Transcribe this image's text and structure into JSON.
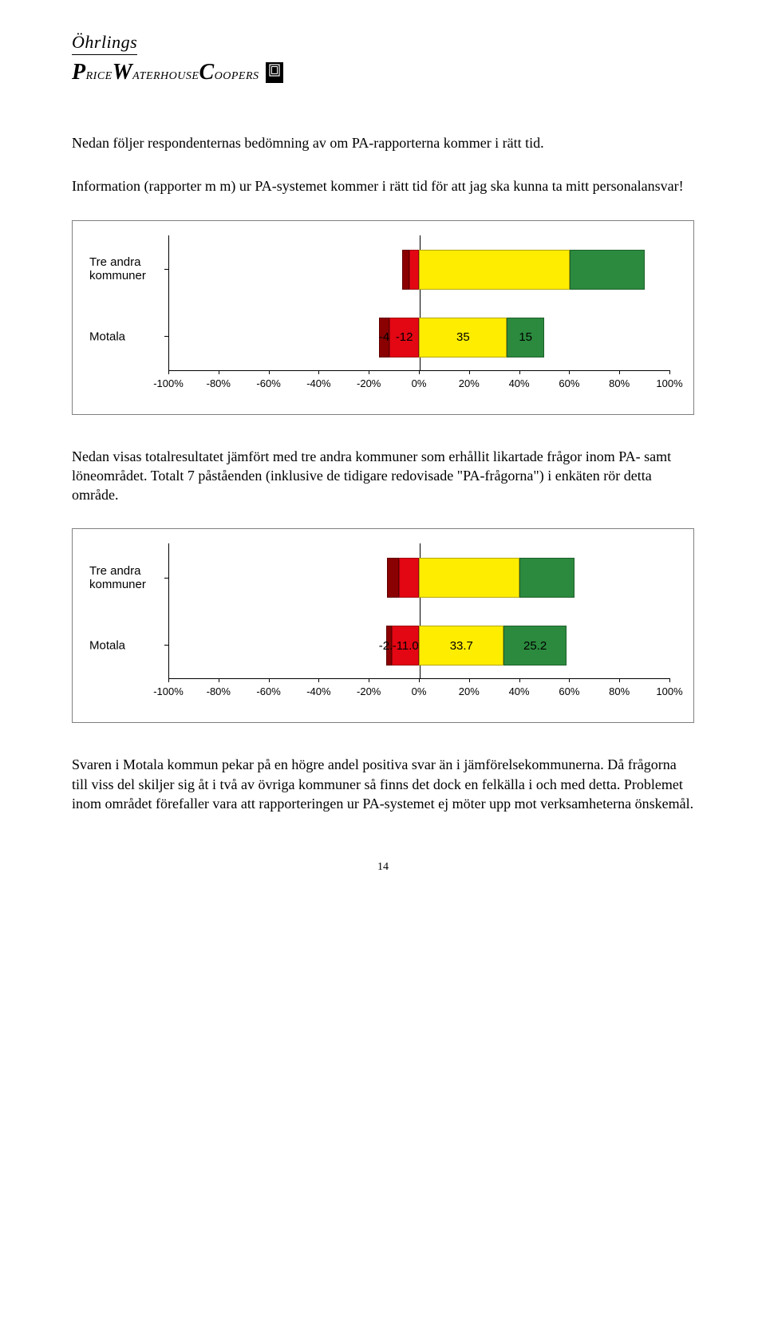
{
  "logo": {
    "line1": "Öhrlings",
    "line2_a": "P",
    "line2_b": "RICE",
    "line2_c": "W",
    "line2_d": "ATERHOUSE",
    "line2_e": "C",
    "line2_f": "OOPERS",
    "box_glyph": "⬚"
  },
  "para1": "Nedan följer respondenternas bedömning av om PA-rapporterna kommer i rätt tid.",
  "para2": "Information (rapporter m m) ur PA-systemet kommer i rätt tid för att jag ska kunna ta mitt personalansvar!",
  "para3": "Nedan visas totalresultatet jämfört med tre andra kommuner som erhållit likartade frågor inom PA- samt löneområdet. Totalt 7 påståenden (inklusive de tidigare redovisade \"PA-frågorna\") i enkäten rör detta område.",
  "para4": "Svaren i Motala kommun pekar på en högre andel positiva svar än i jämförelsekommunerna. Då frågorna till viss del skiljer sig åt i två av övriga kommuner så finns det dock en felkälla i och med detta. Problemet inom området förefaller vara att rapporteringen ur PA-systemet ej möter upp mot verksamheterna önskemål.",
  "page_number": "14",
  "chart1": {
    "type": "stacked-bar-diverging",
    "colors": {
      "darkred": "#8b0000",
      "red": "#e30613",
      "yellow": "#ffed00",
      "green": "#2b8a3e",
      "bg": "#ffffff"
    },
    "x_min": -100,
    "x_max": 100,
    "x_ticks": [
      -100,
      -80,
      -60,
      -40,
      -20,
      0,
      20,
      40,
      60,
      80,
      100
    ],
    "x_tick_labels": [
      "-100%",
      "-80%",
      "-60%",
      "-40%",
      "-20%",
      "0%",
      "20%",
      "40%",
      "60%",
      "80%",
      "100%"
    ],
    "label_font": "Trebuchet MS",
    "label_fontsize": 15,
    "rows": [
      {
        "label": "Tre andra kommuner",
        "segments": [
          {
            "start": -7,
            "end": -4,
            "color": "#8b0000",
            "label": ""
          },
          {
            "start": -4,
            "end": 0,
            "color": "#e30613",
            "label": ""
          },
          {
            "start": 0,
            "end": 60,
            "color": "#ffed00",
            "label": ""
          },
          {
            "start": 60,
            "end": 90,
            "color": "#2b8a3e",
            "label": ""
          }
        ]
      },
      {
        "label": "Motala",
        "segments": [
          {
            "start": -16,
            "end": -12,
            "color": "#8b0000",
            "label": "-4"
          },
          {
            "start": -12,
            "end": 0,
            "color": "#e30613",
            "label": "-12"
          },
          {
            "start": 0,
            "end": 35,
            "color": "#ffed00",
            "label": "35"
          },
          {
            "start": 35,
            "end": 50,
            "color": "#2b8a3e",
            "label": "15"
          }
        ]
      }
    ]
  },
  "chart2": {
    "type": "stacked-bar-diverging",
    "colors": {
      "darkred": "#8b0000",
      "red": "#e30613",
      "yellow": "#ffed00",
      "green": "#2b8a3e",
      "bg": "#ffffff"
    },
    "x_min": -100,
    "x_max": 100,
    "x_ticks": [
      -100,
      -80,
      -60,
      -40,
      -20,
      0,
      20,
      40,
      60,
      80,
      100
    ],
    "x_tick_labels": [
      "-100%",
      "-80%",
      "-60%",
      "-40%",
      "-20%",
      "0%",
      "20%",
      "40%",
      "60%",
      "80%",
      "100%"
    ],
    "rows": [
      {
        "label": "Tre andra kommuner",
        "segments": [
          {
            "start": -13,
            "end": -8,
            "color": "#8b0000",
            "label": ""
          },
          {
            "start": -8,
            "end": 0,
            "color": "#e30613",
            "label": ""
          },
          {
            "start": 0,
            "end": 40,
            "color": "#ffed00",
            "label": ""
          },
          {
            "start": 40,
            "end": 62,
            "color": "#2b8a3e",
            "label": ""
          }
        ]
      },
      {
        "label": "Motala",
        "segments": [
          {
            "start": -13.1,
            "end": -11.0,
            "color": "#8b0000",
            "label": "-2.1"
          },
          {
            "start": -11.0,
            "end": 0,
            "color": "#e30613",
            "label": "-11.0"
          },
          {
            "start": 0,
            "end": 33.7,
            "color": "#ffed00",
            "label": "33.7"
          },
          {
            "start": 33.7,
            "end": 58.9,
            "color": "#2b8a3e",
            "label": "25.2"
          }
        ]
      }
    ]
  }
}
